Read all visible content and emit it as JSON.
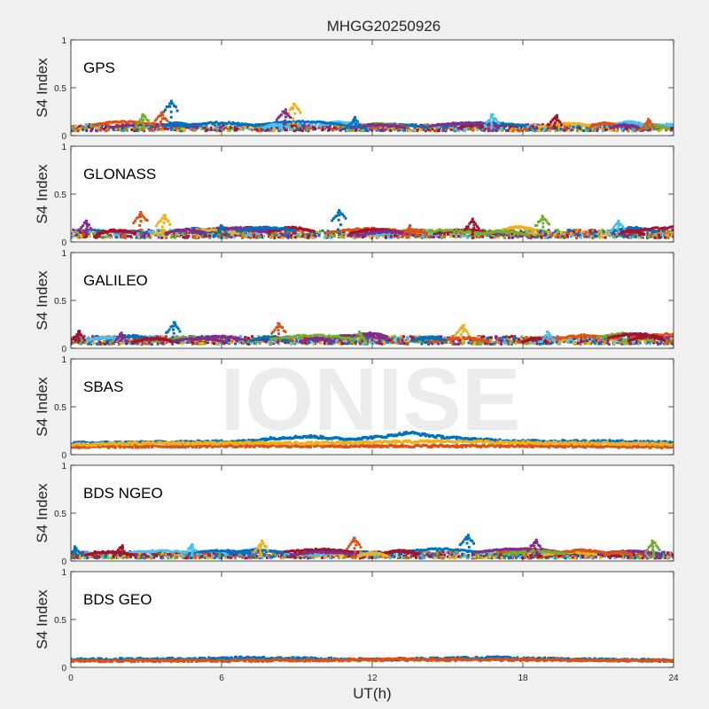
{
  "figure": {
    "title": "MHGG20250926",
    "watermark": "IONISE",
    "xlabel": "UT(h)",
    "ylabel": "S4 Index",
    "xticks": [
      "0",
      "6",
      "12",
      "18",
      "24"
    ],
    "yticks": [
      "0",
      "0.5",
      "1"
    ],
    "colors": [
      "#0072BD",
      "#D95319",
      "#EDB120",
      "#7E2F8E",
      "#77AC30",
      "#4DBEEE",
      "#A2142F"
    ]
  },
  "chart_data": [
    {
      "type": "scatter",
      "panel": "GPS",
      "xlim": [
        0,
        24
      ],
      "ylim": [
        0,
        1
      ],
      "baseline": 0.08,
      "spread": 0.05,
      "peaks": [
        {
          "x": 4.0,
          "y": 0.36
        },
        {
          "x": 3.6,
          "y": 0.24
        },
        {
          "x": 8.9,
          "y": 0.33
        },
        {
          "x": 8.5,
          "y": 0.27
        },
        {
          "x": 2.9,
          "y": 0.22
        },
        {
          "x": 16.8,
          "y": 0.22
        },
        {
          "x": 19.3,
          "y": 0.21
        },
        {
          "x": 11.3,
          "y": 0.19
        },
        {
          "x": 23.0,
          "y": 0.17
        }
      ]
    },
    {
      "type": "scatter",
      "panel": "GLONASS",
      "xlim": [
        0,
        24
      ],
      "ylim": [
        0,
        1
      ],
      "baseline": 0.08,
      "spread": 0.06,
      "peaks": [
        {
          "x": 10.7,
          "y": 0.33
        },
        {
          "x": 2.8,
          "y": 0.31
        },
        {
          "x": 3.7,
          "y": 0.28
        },
        {
          "x": 0.6,
          "y": 0.22
        },
        {
          "x": 18.8,
          "y": 0.27
        },
        {
          "x": 21.8,
          "y": 0.22
        },
        {
          "x": 16.0,
          "y": 0.24
        },
        {
          "x": 6.0,
          "y": 0.17
        },
        {
          "x": 13.5,
          "y": 0.17
        }
      ]
    },
    {
      "type": "scatter",
      "panel": "GALILEO",
      "xlim": [
        0,
        24
      ],
      "ylim": [
        0,
        1
      ],
      "baseline": 0.08,
      "spread": 0.06,
      "peaks": [
        {
          "x": 4.1,
          "y": 0.27
        },
        {
          "x": 8.3,
          "y": 0.26
        },
        {
          "x": 15.6,
          "y": 0.24
        },
        {
          "x": 2.0,
          "y": 0.16
        },
        {
          "x": 11.5,
          "y": 0.17
        },
        {
          "x": 19.0,
          "y": 0.17
        },
        {
          "x": 0.3,
          "y": 0.18
        }
      ]
    },
    {
      "type": "scatter",
      "panel": "SBAS",
      "xlim": [
        0,
        24
      ],
      "ylim": [
        0,
        1
      ],
      "series": [
        {
          "color": "#0072BD",
          "points": [
            [
              0,
              0.12
            ],
            [
              4,
              0.13
            ],
            [
              7,
              0.14
            ],
            [
              8,
              0.17
            ],
            [
              9.5,
              0.19
            ],
            [
              11,
              0.16
            ],
            [
              12.5,
              0.19
            ],
            [
              13.5,
              0.23
            ],
            [
              14.5,
              0.19
            ],
            [
              16,
              0.16
            ],
            [
              18,
              0.14
            ],
            [
              21,
              0.14
            ],
            [
              24,
              0.13
            ]
          ]
        },
        {
          "color": "#D95319",
          "points": [
            [
              0,
              0.08
            ],
            [
              6,
              0.09
            ],
            [
              12,
              0.09
            ],
            [
              18,
              0.09
            ],
            [
              24,
              0.08
            ]
          ]
        },
        {
          "color": "#EDB120",
          "points": [
            [
              0,
              0.1
            ],
            [
              3,
              0.12
            ],
            [
              6,
              0.12
            ],
            [
              10,
              0.12
            ],
            [
              15,
              0.14
            ],
            [
              17,
              0.13
            ],
            [
              20,
              0.12
            ],
            [
              24,
              0.11
            ]
          ]
        }
      ]
    },
    {
      "type": "scatter",
      "panel": "BDS NGEO",
      "xlim": [
        0,
        24
      ],
      "ylim": [
        0,
        1
      ],
      "baseline": 0.06,
      "spread": 0.05,
      "peaks": [
        {
          "x": 15.8,
          "y": 0.27
        },
        {
          "x": 11.3,
          "y": 0.24
        },
        {
          "x": 7.6,
          "y": 0.21
        },
        {
          "x": 18.5,
          "y": 0.22
        },
        {
          "x": 23.2,
          "y": 0.21
        },
        {
          "x": 4.8,
          "y": 0.17
        },
        {
          "x": 2.0,
          "y": 0.16
        },
        {
          "x": 0.2,
          "y": 0.15
        }
      ]
    },
    {
      "type": "scatter",
      "panel": "BDS GEO",
      "xlim": [
        0,
        24
      ],
      "ylim": [
        0,
        1
      ],
      "series": [
        {
          "color": "#0072BD",
          "points": [
            [
              0,
              0.08
            ],
            [
              6,
              0.09
            ],
            [
              7,
              0.1
            ],
            [
              12,
              0.08
            ],
            [
              17,
              0.1
            ],
            [
              18,
              0.09
            ],
            [
              24,
              0.07
            ]
          ]
        },
        {
          "color": "#D95319",
          "points": [
            [
              0,
              0.07
            ],
            [
              6,
              0.07
            ],
            [
              12,
              0.08
            ],
            [
              18,
              0.08
            ],
            [
              24,
              0.07
            ]
          ]
        }
      ]
    }
  ]
}
